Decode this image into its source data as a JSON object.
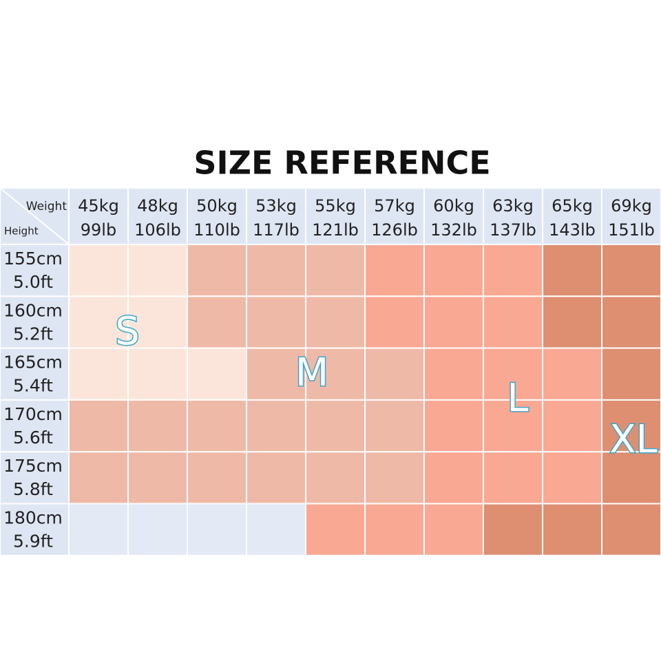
{
  "title": "SIZE REFERENCE",
  "table": {
    "corner": {
      "top": "Weight",
      "bottom": "Height"
    },
    "columns": [
      {
        "kg": "45kg",
        "lb": "99lb"
      },
      {
        "kg": "48kg",
        "lb": "106lb"
      },
      {
        "kg": "50kg",
        "lb": "110lb"
      },
      {
        "kg": "53kg",
        "lb": "117lb"
      },
      {
        "kg": "55kg",
        "lb": "121lb"
      },
      {
        "kg": "57kg",
        "lb": "126lb"
      },
      {
        "kg": "60kg",
        "lb": "132lb"
      },
      {
        "kg": "63kg",
        "lb": "137lb"
      },
      {
        "kg": "65kg",
        "lb": "143lb"
      },
      {
        "kg": "69kg",
        "lb": "151lb"
      }
    ],
    "rows": [
      {
        "cm": "155cm",
        "ft": "5.0ft"
      },
      {
        "cm": "160cm",
        "ft": "5.2ft"
      },
      {
        "cm": "165cm",
        "ft": "5.4ft"
      },
      {
        "cm": "170cm",
        "ft": "5.6ft"
      },
      {
        "cm": "175cm",
        "ft": "5.8ft"
      },
      {
        "cm": "180cm",
        "ft": "5.9ft"
      }
    ]
  },
  "sizes": [
    "S",
    "M",
    "L",
    "XL"
  ]
}
